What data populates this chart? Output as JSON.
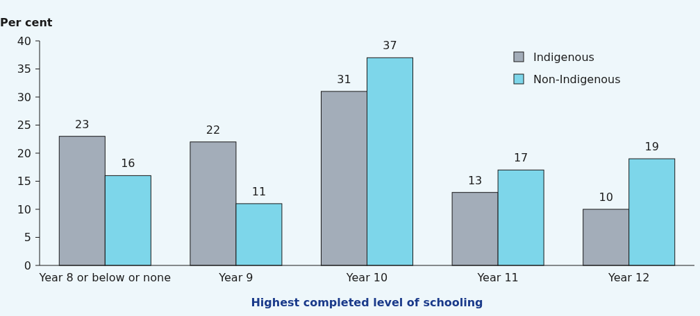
{
  "chart_data": {
    "type": "bar",
    "ylabel": "Per cent",
    "xlabel": "Highest completed level of schooling",
    "categories": [
      "Year 8 or below or none",
      "Year 9",
      "Year 10",
      "Year 11",
      "Year 12"
    ],
    "series": [
      {
        "name": "Indigenous",
        "color": "#a3adb9",
        "values": [
          23,
          22,
          31,
          13,
          10
        ]
      },
      {
        "name": "Non-Indigenous",
        "color": "#7dd6ea",
        "values": [
          16,
          11,
          37,
          17,
          19
        ]
      }
    ],
    "ylim": [
      0,
      40
    ],
    "yticks": [
      0,
      5,
      10,
      15,
      20,
      25,
      30,
      35,
      40
    ],
    "data_labels": true,
    "legend": "top right",
    "grid": false
  }
}
